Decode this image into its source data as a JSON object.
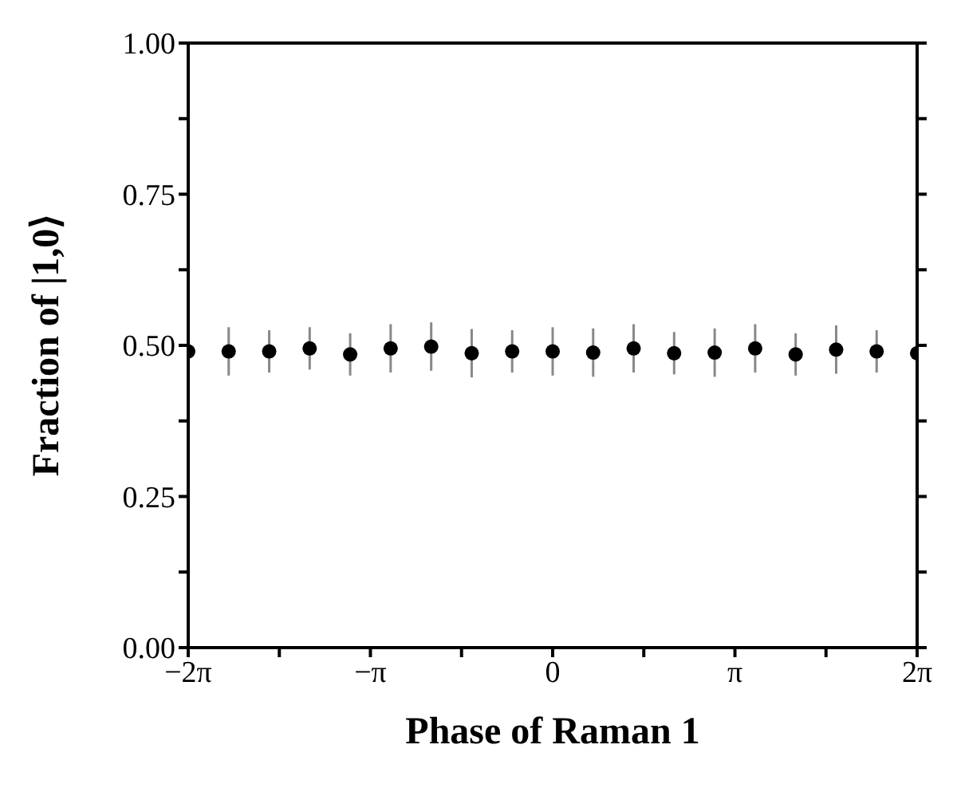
{
  "chart_data": {
    "type": "scatter",
    "xlabel": "Phase of Raman 1",
    "ylabel": "Fraction of |1,0⟩",
    "x": [
      -6.283,
      -5.585,
      -4.887,
      -4.189,
      -3.491,
      -2.793,
      -2.094,
      -1.396,
      -0.698,
      0,
      0.698,
      1.396,
      2.094,
      2.793,
      3.491,
      4.189,
      4.887,
      5.585,
      6.283
    ],
    "series": [
      {
        "color": "#000000",
        "values": [
          0.49,
          0.49,
          0.49,
          0.495,
          0.485,
          0.495,
          0.498,
          0.487,
          0.49,
          0.49,
          0.488,
          0.495,
          0.487,
          0.488,
          0.495,
          0.485,
          0.493,
          0.49,
          0.487
        ],
        "errors": [
          0.04,
          0.04,
          0.035,
          0.035,
          0.035,
          0.04,
          0.04,
          0.04,
          0.035,
          0.04,
          0.04,
          0.04,
          0.035,
          0.04,
          0.04,
          0.035,
          0.04,
          0.035,
          0.04
        ]
      }
    ],
    "xlim": [
      -6.283,
      6.283
    ],
    "xticks": [
      {
        "value": -6.283,
        "label": "−2π"
      },
      {
        "value": -4.712,
        "label": null
      },
      {
        "value": -3.142,
        "label": "−π"
      },
      {
        "value": -1.571,
        "label": null
      },
      0,
      {
        "value": 1.571,
        "label": null
      },
      {
        "value": 3.142,
        "label": "π"
      },
      {
        "value": 4.712,
        "label": null
      },
      {
        "value": 6.283,
        "label": "2π"
      }
    ],
    "ylim": [
      0,
      1
    ],
    "yticks": [
      {
        "value": 0,
        "label": "0.00"
      },
      {
        "value": 0.125,
        "label": null
      },
      {
        "value": 0.25,
        "label": "0.25"
      },
      {
        "value": 0.375,
        "label": null
      },
      {
        "value": 0.5,
        "label": "0.50"
      },
      {
        "value": 0.625,
        "label": null
      },
      {
        "value": 0.75,
        "label": "0.75"
      },
      {
        "value": 0.875,
        "label": null
      },
      {
        "value": 1,
        "label": "1.00"
      }
    ],
    "marker": "circle",
    "grid": false,
    "legend": false
  }
}
